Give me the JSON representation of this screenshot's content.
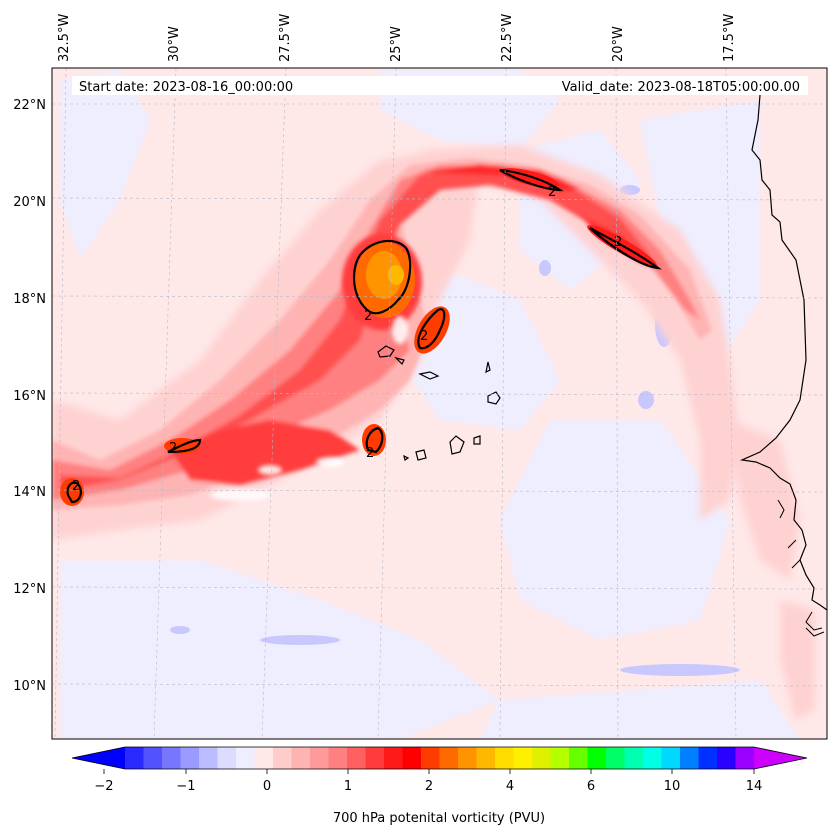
{
  "header": {
    "start_date": "Start date: 2023-08-16_00:00:00",
    "valid_date": "Valid_date: 2023-08-18T05:00:00.00"
  },
  "longitude_labels": [
    "32.5°W",
    "30°W",
    "27.5°W",
    "25°W",
    "22.5°W",
    "20°W",
    "17.5°W"
  ],
  "latitude_labels": [
    "22°N",
    "20°N",
    "18°N",
    "16°N",
    "14°N",
    "12°N",
    "10°N"
  ],
  "contour_label": "2",
  "colorbar": {
    "label": "700 hPa potenital vorticity (PVU)",
    "ticks": [
      "−2",
      "−1",
      "0",
      "1",
      "2",
      "4",
      "6",
      "10",
      "14"
    ],
    "colors": [
      "#0000ff",
      "#2a2aff",
      "#5252ff",
      "#7676ff",
      "#9a9aff",
      "#bbbbff",
      "#dcdcff",
      "#eeeeff",
      "#ffe8e8",
      "#ffcccc",
      "#ffb4b4",
      "#ff9a9a",
      "#ff8080",
      "#ff6060",
      "#ff3c3c",
      "#ff1a1a",
      "#ff0000",
      "#ff3c00",
      "#ff6a00",
      "#ff9400",
      "#ffb800",
      "#ffdc00",
      "#fff000",
      "#e0f000",
      "#b4ff00",
      "#66ff00",
      "#00ff00",
      "#00ff66",
      "#00ffb0",
      "#00ffe6",
      "#00d8ff",
      "#0080ff",
      "#0030ff",
      "#2a00ff",
      "#9a00ff",
      "#cc00ff"
    ]
  },
  "colors": {
    "background": "#ffe8e8",
    "contour": "#000000"
  }
}
